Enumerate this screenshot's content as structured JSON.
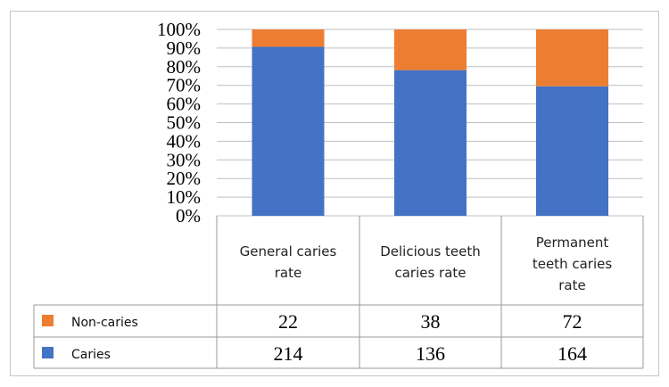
{
  "chart_data": {
    "type": "bar",
    "stacked": true,
    "normalized": true,
    "categories": [
      [
        "General caries",
        "rate"
      ],
      [
        "Delicious teeth",
        "caries rate"
      ],
      [
        "Permanent",
        "teeth caries",
        "rate"
      ]
    ],
    "series": [
      {
        "name": "Caries",
        "values": [
          214,
          136,
          164
        ],
        "color": "#4472c4",
        "legend_icon": "blue-square"
      },
      {
        "name": "Non-caries",
        "values": [
          22,
          38,
          72
        ],
        "color": "#ed7d31",
        "legend_icon": "orange-square"
      }
    ],
    "y_ticks": [
      "0%",
      "10%",
      "20%",
      "30%",
      "40%",
      "50%",
      "60%",
      "70%",
      "80%",
      "90%",
      "100%"
    ],
    "ylim": [
      0,
      100
    ],
    "grid": true,
    "legend": "data-table"
  }
}
